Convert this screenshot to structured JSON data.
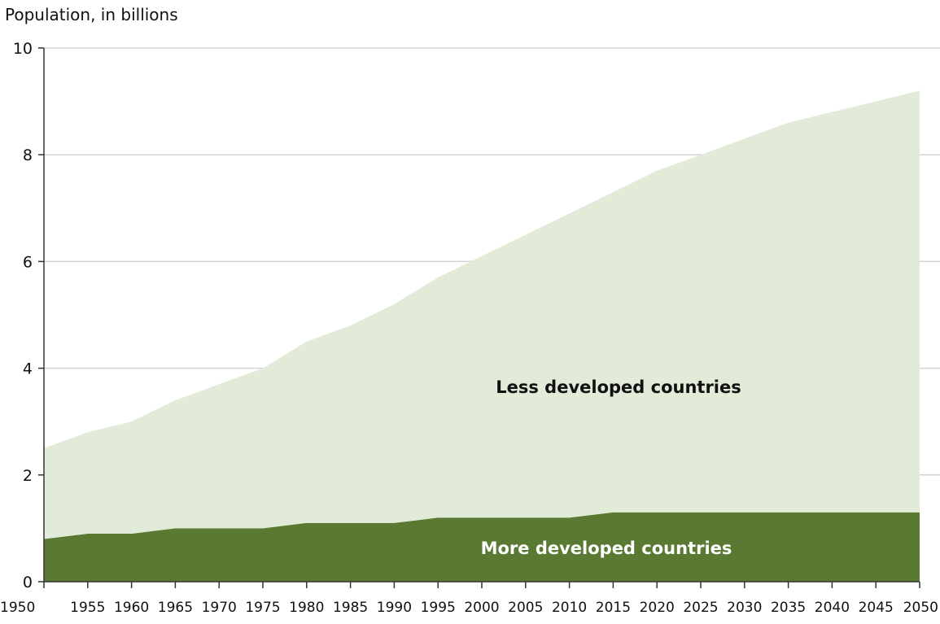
{
  "chart_data": {
    "type": "area",
    "stacked": true,
    "title": "",
    "ylabel": "Population, in billions",
    "xlabel": "",
    "ylim": [
      0,
      10
    ],
    "yticks": [
      "0",
      "2",
      "4",
      "6",
      "8",
      "10"
    ],
    "categories": [
      "1950",
      "1955",
      "1960",
      "1965",
      "1970",
      "1975",
      "1980",
      "1985",
      "1990",
      "1995",
      "2000",
      "2005",
      "2010",
      "2015",
      "2020",
      "2025",
      "2030",
      "2035",
      "2040",
      "2045",
      "2050"
    ],
    "series": [
      {
        "name": "More developed countries",
        "color": "#5a7a34",
        "label_color": "#ffffff",
        "values": [
          0.8,
          0.9,
          0.9,
          1.0,
          1.0,
          1.0,
          1.1,
          1.1,
          1.1,
          1.2,
          1.2,
          1.2,
          1.2,
          1.3,
          1.3,
          1.3,
          1.3,
          1.3,
          1.3,
          1.3,
          1.3
        ]
      },
      {
        "name": "Less developed countries",
        "color": "#e2ead8",
        "label_color": "#111111",
        "values": [
          1.7,
          1.9,
          2.1,
          2.4,
          2.7,
          3.0,
          3.4,
          3.7,
          4.1,
          4.5,
          4.9,
          5.3,
          5.7,
          6.0,
          6.4,
          6.7,
          7.0,
          7.3,
          7.5,
          7.7,
          7.9
        ]
      }
    ],
    "grid": "horizontal",
    "legend": "none"
  }
}
